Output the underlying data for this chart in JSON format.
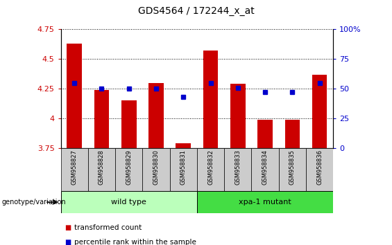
{
  "title": "GDS4564 / 172244_x_at",
  "samples": [
    "GSM958827",
    "GSM958828",
    "GSM958829",
    "GSM958830",
    "GSM958831",
    "GSM958832",
    "GSM958833",
    "GSM958834",
    "GSM958835",
    "GSM958836"
  ],
  "transformed_count": [
    4.63,
    4.24,
    4.15,
    4.3,
    3.79,
    4.57,
    4.29,
    3.99,
    3.99,
    4.37
  ],
  "percentile_rank": [
    55,
    50,
    50,
    50,
    43,
    55,
    51,
    47,
    47,
    55
  ],
  "ylim_left": [
    3.75,
    4.75
  ],
  "ylim_right": [
    0,
    100
  ],
  "yticks_left": [
    3.75,
    4.0,
    4.25,
    4.5,
    4.75
  ],
  "yticks_right": [
    0,
    25,
    50,
    75,
    100
  ],
  "ytick_labels_left": [
    "3.75",
    "4",
    "4.25",
    "4.5",
    "4.75"
  ],
  "ytick_labels_right": [
    "0",
    "25",
    "50",
    "75",
    "100%"
  ],
  "bar_color": "#cc0000",
  "dot_color": "#0000cc",
  "groups": [
    {
      "label": "wild type",
      "indices": [
        0,
        1,
        2,
        3,
        4
      ],
      "color": "#bbffbb"
    },
    {
      "label": "xpa-1 mutant",
      "indices": [
        5,
        6,
        7,
        8,
        9
      ],
      "color": "#44dd44"
    }
  ],
  "genotype_label": "genotype/variation",
  "legend_items": [
    {
      "label": "transformed count",
      "color": "#cc0000"
    },
    {
      "label": "percentile rank within the sample",
      "color": "#0000cc"
    }
  ],
  "background_color": "#ffffff",
  "tick_label_color_left": "#cc0000",
  "tick_label_color_right": "#0000cc",
  "sample_label_bg": "#cccccc",
  "fig_width": 5.65,
  "fig_height": 3.54,
  "dpi": 100
}
